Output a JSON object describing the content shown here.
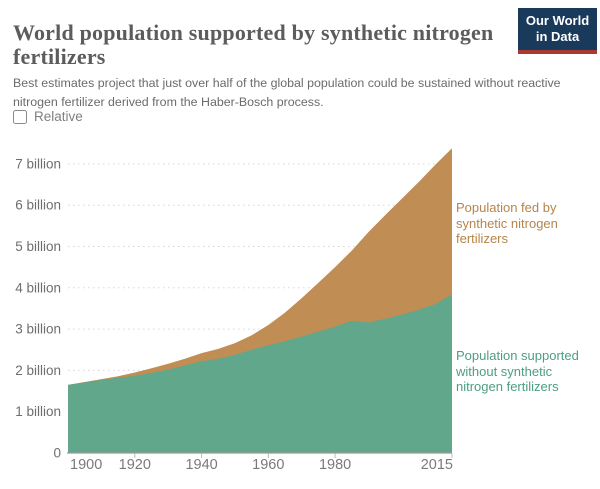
{
  "header": {
    "title": "World population supported by synthetic nitrogen fertilizers",
    "subtitle": "Best estimates project that just over half of the global population could be sustained without reactive nitrogen fertilizer derived from the Haber-Bosch process.",
    "logo": {
      "line1": "Our World",
      "line2": "in Data",
      "bg_color": "#1a3a5c",
      "accent_color": "#a83a31"
    }
  },
  "controls": {
    "relative_label": "Relative",
    "relative_checked": false
  },
  "chart_data": {
    "type": "area",
    "stacked": true,
    "title": "World population supported by synthetic nitrogen fertilizers",
    "xlabel": "",
    "ylabel": "",
    "x": [
      1900,
      1905,
      1910,
      1915,
      1920,
      1925,
      1930,
      1935,
      1940,
      1945,
      1950,
      1955,
      1960,
      1965,
      1970,
      1975,
      1980,
      1985,
      1990,
      1995,
      2000,
      2005,
      2010,
      2015
    ],
    "series": [
      {
        "name": "Population supported without synthetic nitrogen fertilizers",
        "color": "#61A78C",
        "unit": "billion",
        "values": [
          1.65,
          1.71,
          1.77,
          1.82,
          1.87,
          1.94,
          2.02,
          2.12,
          2.22,
          2.28,
          2.38,
          2.5,
          2.61,
          2.71,
          2.82,
          2.94,
          3.06,
          3.2,
          3.16,
          3.25,
          3.35,
          3.47,
          3.6,
          3.84
        ]
      },
      {
        "name": "Population fed by synthetic nitrogen fertilizers",
        "color": "#C08D55",
        "unit": "billion",
        "values": [
          0,
          0.01,
          0.02,
          0.04,
          0.08,
          0.11,
          0.14,
          0.16,
          0.2,
          0.24,
          0.28,
          0.35,
          0.49,
          0.69,
          0.93,
          1.18,
          1.44,
          1.7,
          2.19,
          2.51,
          2.81,
          3.09,
          3.38,
          3.54
        ]
      }
    ],
    "total_population_2015": 7.38,
    "xlim": [
      1900,
      2015
    ],
    "ylim": [
      0,
      7.5
    ],
    "yticks": [
      {
        "v": 0,
        "label": "0"
      },
      {
        "v": 1,
        "label": "1 billion"
      },
      {
        "v": 2,
        "label": "2 billion"
      },
      {
        "v": 3,
        "label": "3 billion"
      },
      {
        "v": 4,
        "label": "4 billion"
      },
      {
        "v": 5,
        "label": "5 billion"
      },
      {
        "v": 6,
        "label": "6 billion"
      },
      {
        "v": 7,
        "label": "7 billion"
      }
    ],
    "xticks": [
      "1900",
      "1920",
      "1940",
      "1960",
      "1980",
      "2015"
    ],
    "grid": "horizontal-dashed",
    "legend_position": "inline-annotations"
  },
  "annotations": {
    "fed": {
      "text": "Population fed by synthetic nitrogen fertilizers",
      "color": "#B5854C"
    },
    "without": {
      "text": "Population supported without synthetic nitrogen fertilizers",
      "color": "#4E9E83"
    }
  }
}
